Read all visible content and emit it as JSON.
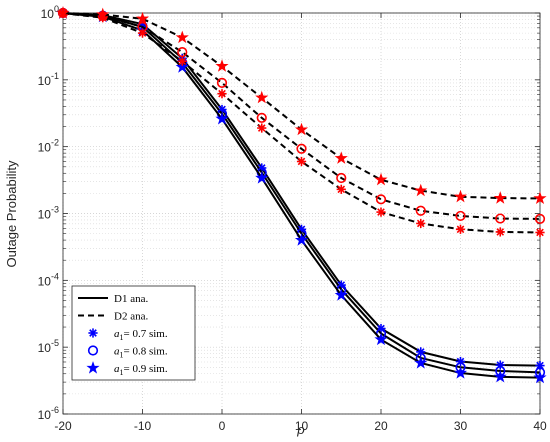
{
  "chart_data": {
    "type": "line",
    "x": [
      -20,
      -15,
      -10,
      -5,
      0,
      5,
      10,
      15,
      20,
      25,
      30,
      35,
      40
    ],
    "xlim": [
      -20,
      40
    ],
    "ylim": [
      1e-06,
      1
    ],
    "yscale": "log",
    "xticks": [
      "-20",
      "-10",
      "0",
      "10",
      "20",
      "30",
      "40"
    ],
    "yticks": [
      {
        "base": "10",
        "exp": "0"
      },
      {
        "base": "10",
        "exp": "-1"
      },
      {
        "base": "10",
        "exp": "-2"
      },
      {
        "base": "10",
        "exp": "-3"
      },
      {
        "base": "10",
        "exp": "-4"
      },
      {
        "base": "10",
        "exp": "-5"
      },
      {
        "base": "10",
        "exp": "-6"
      }
    ],
    "xlabel": "ρ",
    "ylabel": "Outage Probability",
    "grid": true,
    "legend_position": "bottom-left",
    "legend": [
      {
        "style": "solid",
        "label": "D1 ana."
      },
      {
        "style": "dashed",
        "label": "D2 ana."
      },
      {
        "marker": "asterisk",
        "symbol": "a",
        "sub": "1",
        "text": "= 0.7 sim."
      },
      {
        "marker": "circle",
        "symbol": "a",
        "sub": "1",
        "text": "= 0.8 sim."
      },
      {
        "marker": "star",
        "symbol": "a",
        "sub": "1",
        "text": "= 0.9 sim."
      }
    ],
    "colors": {
      "D1": "#0000ff",
      "D2": "#ff0000",
      "line": "#000000"
    },
    "series": [
      {
        "user": "D1",
        "a1": 0.7,
        "marker": "asterisk",
        "values": [
          1.0,
          0.93,
          0.68,
          0.21,
          0.036,
          0.0048,
          0.00058,
          8.5e-05,
          1.9e-05,
          8.5e-06,
          6.1e-06,
          5.4e-06,
          5.3e-06
        ]
      },
      {
        "user": "D1",
        "a1": 0.8,
        "marker": "circle",
        "values": [
          1.0,
          0.91,
          0.62,
          0.18,
          0.031,
          0.0041,
          0.0005,
          7.3e-05,
          1.6e-05,
          6.9e-06,
          5e-06,
          4.4e-06,
          4.2e-06
        ]
      },
      {
        "user": "D1",
        "a1": 0.9,
        "marker": "star",
        "values": [
          0.99,
          0.88,
          0.55,
          0.155,
          0.026,
          0.0034,
          0.0004,
          6e-05,
          1.3e-05,
          5.8e-06,
          4.1e-06,
          3.6e-06,
          3.5e-06
        ]
      },
      {
        "user": "D2",
        "a1": 0.7,
        "marker": "asterisk",
        "values": [
          0.99,
          0.85,
          0.5,
          0.19,
          0.062,
          0.019,
          0.006,
          0.0023,
          0.00105,
          0.00071,
          0.00058,
          0.00053,
          0.00052
        ]
      },
      {
        "user": "D2",
        "a1": 0.8,
        "marker": "circle",
        "values": [
          1.0,
          0.9,
          0.62,
          0.26,
          0.09,
          0.027,
          0.0093,
          0.0034,
          0.00163,
          0.0011,
          0.00092,
          0.00084,
          0.00083
        ]
      },
      {
        "user": "D2",
        "a1": 0.9,
        "marker": "star",
        "values": [
          1.0,
          0.95,
          0.82,
          0.43,
          0.16,
          0.054,
          0.018,
          0.0067,
          0.0032,
          0.0022,
          0.00178,
          0.0017,
          0.00168
        ]
      }
    ]
  }
}
